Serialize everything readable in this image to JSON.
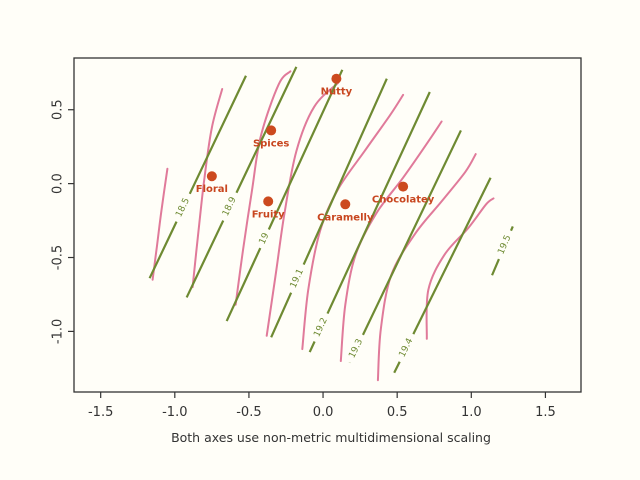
{
  "chart_data": {
    "type": "scatter",
    "title": "",
    "xlabel": "Both axes use non-metric multidimensional scaling",
    "ylabel": "",
    "xlim": [
      -1.68,
      1.74
    ],
    "ylim": [
      -1.41,
      0.85
    ],
    "x_ticks": [
      {
        "value": -1.5,
        "label": "-1.5"
      },
      {
        "value": -1.0,
        "label": "-1.0"
      },
      {
        "value": -0.5,
        "label": "-0.5"
      },
      {
        "value": 0.0,
        "label": "0.0"
      },
      {
        "value": 0.5,
        "label": "0.5"
      },
      {
        "value": 1.0,
        "label": "1.0"
      },
      {
        "value": 1.5,
        "label": "1.5"
      }
    ],
    "y_ticks": [
      {
        "value": -1.0,
        "label": "-1.0"
      },
      {
        "value": -0.5,
        "label": "-0.5"
      },
      {
        "value": 0.0,
        "label": "0.0"
      },
      {
        "value": 0.5,
        "label": "0.5"
      }
    ],
    "grid": false,
    "colors": {
      "points": "#cc4a1f",
      "linear_contours": "#6e8a32",
      "smooth_contours": "#e07a9a",
      "axis": "#333333",
      "background": "#fffef8"
    },
    "points": [
      {
        "name": "Nutty",
        "x": 0.09,
        "y": 0.71
      },
      {
        "name": "Spices",
        "x": -0.35,
        "y": 0.36
      },
      {
        "name": "Floral",
        "x": -0.75,
        "y": 0.05
      },
      {
        "name": "Chocolatey",
        "x": 0.54,
        "y": -0.02
      },
      {
        "name": "Fruity",
        "x": -0.37,
        "y": -0.12
      },
      {
        "name": "Caramelly",
        "x": 0.15,
        "y": -0.14
      }
    ],
    "linear_contours": [
      {
        "label": "18.5",
        "from": [
          -1.17,
          -0.64
        ],
        "to": [
          -0.52,
          0.73
        ],
        "label_at": [
          -0.95,
          -0.16
        ]
      },
      {
        "label": "18.9",
        "from": [
          -0.92,
          -0.77
        ],
        "to": [
          -0.18,
          0.79
        ],
        "label_at": [
          -0.62,
          -0.16
        ]
      },
      {
        "label": "19",
        "from": [
          -0.65,
          -0.93
        ],
        "to": [
          0.13,
          0.77
        ],
        "label_at": [
          -0.38,
          -0.38
        ]
      },
      {
        "label": "19.1",
        "from": [
          -0.35,
          -1.04
        ],
        "to": [
          0.43,
          0.71
        ],
        "label_at": [
          -0.18,
          -0.64
        ]
      },
      {
        "label": "19.2",
        "from": [
          -0.09,
          -1.14
        ],
        "to": [
          0.72,
          0.62
        ],
        "label_at": [
          0.0,
          -0.98
        ]
      },
      {
        "label": "19.3",
        "from": [
          0.18,
          -1.21
        ],
        "to": [
          0.93,
          0.36
        ],
        "label_at": [
          0.23,
          -1.12
        ]
      },
      {
        "label": "19.4",
        "from": [
          0.48,
          -1.28
        ],
        "to": [
          1.13,
          0.04
        ],
        "label_at": [
          0.58,
          -1.12
        ]
      },
      {
        "label": "19.5",
        "from": [
          1.14,
          -0.62
        ],
        "to": [
          1.28,
          -0.29
        ],
        "label_at": [
          1.24,
          -0.42
        ]
      }
    ],
    "smooth_contours": [
      [
        [
          -1.15,
          -0.65
        ],
        [
          -1.12,
          -0.42
        ],
        [
          -1.09,
          -0.18
        ],
        [
          -1.05,
          0.1
        ]
      ],
      [
        [
          -0.88,
          -0.7
        ],
        [
          -0.84,
          -0.32
        ],
        [
          -0.8,
          0.04
        ],
        [
          -0.75,
          0.38
        ],
        [
          -0.68,
          0.64
        ]
      ],
      [
        [
          -0.59,
          -0.82
        ],
        [
          -0.54,
          -0.45
        ],
        [
          -0.48,
          -0.05
        ],
        [
          -0.42,
          0.32
        ],
        [
          -0.3,
          0.67
        ],
        [
          -0.22,
          0.76
        ]
      ],
      [
        [
          -0.38,
          -1.03
        ],
        [
          -0.32,
          -0.62
        ],
        [
          -0.26,
          -0.2
        ],
        [
          -0.18,
          0.22
        ],
        [
          -0.06,
          0.52
        ],
        [
          0.1,
          0.68
        ]
      ],
      [
        [
          -0.14,
          -1.12
        ],
        [
          -0.1,
          -0.72
        ],
        [
          -0.02,
          -0.32
        ],
        [
          0.1,
          -0.04
        ],
        [
          0.28,
          0.22
        ],
        [
          0.45,
          0.46
        ],
        [
          0.54,
          0.6
        ]
      ],
      [
        [
          0.12,
          -1.2
        ],
        [
          0.15,
          -0.82
        ],
        [
          0.22,
          -0.48
        ],
        [
          0.36,
          -0.2
        ],
        [
          0.54,
          0.04
        ],
        [
          0.7,
          0.27
        ],
        [
          0.8,
          0.42
        ]
      ],
      [
        [
          0.37,
          -1.33
        ],
        [
          0.39,
          -0.98
        ],
        [
          0.46,
          -0.62
        ],
        [
          0.62,
          -0.34
        ],
        [
          0.8,
          -0.12
        ],
        [
          0.96,
          0.08
        ],
        [
          1.03,
          0.2
        ]
      ],
      [
        [
          0.7,
          -1.05
        ],
        [
          0.71,
          -0.72
        ],
        [
          0.82,
          -0.48
        ],
        [
          0.98,
          -0.3
        ],
        [
          1.1,
          -0.14
        ],
        [
          1.15,
          -0.1
        ]
      ]
    ]
  }
}
